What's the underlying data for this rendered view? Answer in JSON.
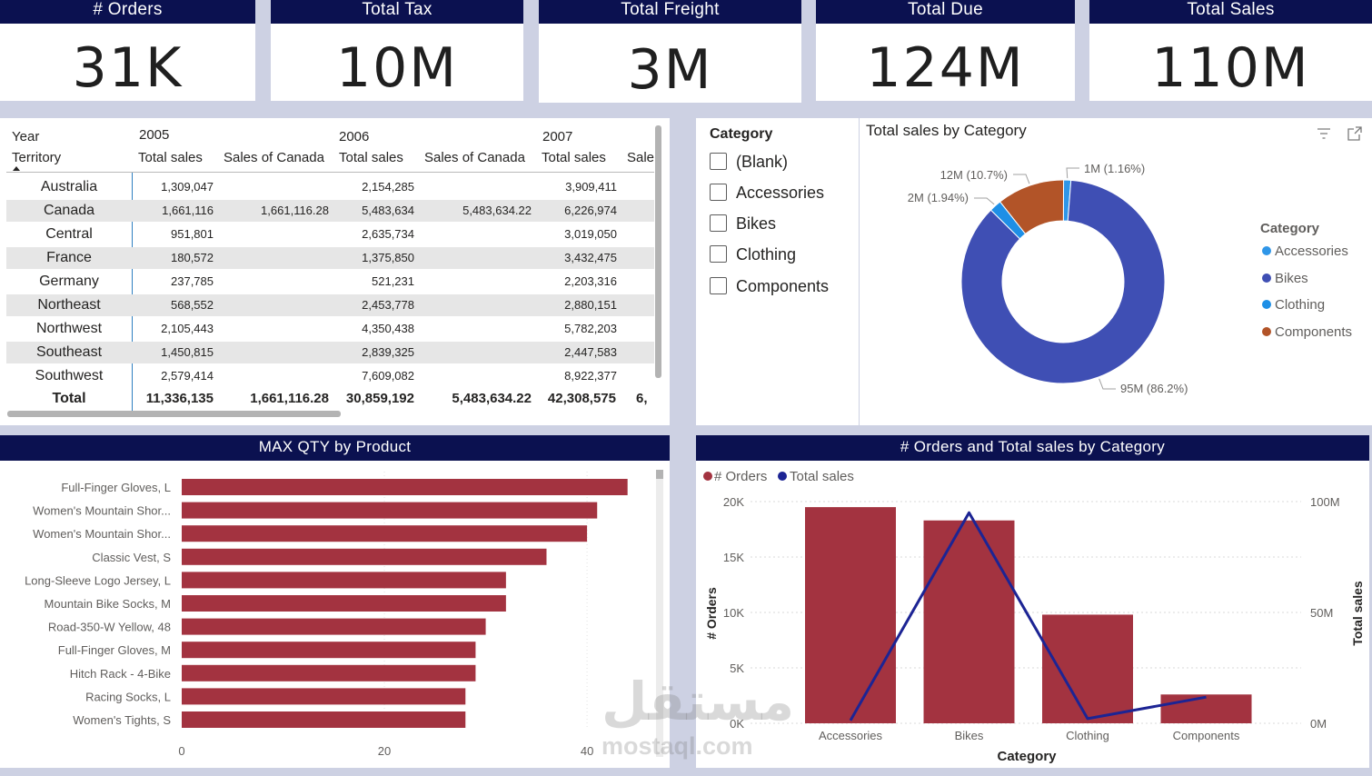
{
  "kpis": [
    {
      "label": "# Orders",
      "value": "31K"
    },
    {
      "label": "Total Tax",
      "value": "10M"
    },
    {
      "label": "Total Freight",
      "value": "3M"
    },
    {
      "label": "Total Due",
      "value": "124M"
    },
    {
      "label": "Total Sales",
      "value": "110M"
    }
  ],
  "matrix": {
    "row_header_1": "Year",
    "row_header_2": "Territory",
    "years": [
      "2005",
      "2006",
      "2007"
    ],
    "columns": [
      "Total sales",
      "Sales of Canada",
      "Total sales",
      "Sales of Canada",
      "Total sales",
      "Sales"
    ],
    "rows": [
      {
        "territory": "Australia",
        "cells": [
          "1,309,047",
          "",
          "2,154,285",
          "",
          "3,909,411"
        ]
      },
      {
        "territory": "Canada",
        "cells": [
          "1,661,116",
          "1,661,116.28",
          "5,483,634",
          "5,483,634.22",
          "6,226,974"
        ]
      },
      {
        "territory": "Central",
        "cells": [
          "951,801",
          "",
          "2,635,734",
          "",
          "3,019,050"
        ]
      },
      {
        "territory": "France",
        "cells": [
          "180,572",
          "",
          "1,375,850",
          "",
          "3,432,475"
        ]
      },
      {
        "territory": "Germany",
        "cells": [
          "237,785",
          "",
          "521,231",
          "",
          "2,203,316"
        ]
      },
      {
        "territory": "Northeast",
        "cells": [
          "568,552",
          "",
          "2,453,778",
          "",
          "2,880,151"
        ]
      },
      {
        "territory": "Northwest",
        "cells": [
          "2,105,443",
          "",
          "4,350,438",
          "",
          "5,782,203"
        ]
      },
      {
        "territory": "Southeast",
        "cells": [
          "1,450,815",
          "",
          "2,839,325",
          "",
          "2,447,583"
        ]
      },
      {
        "territory": "Southwest",
        "cells": [
          "2,579,414",
          "",
          "7,609,082",
          "",
          "8,922,377"
        ]
      }
    ],
    "total_label": "Total",
    "totals": [
      "11,336,135",
      "1,661,116.28",
      "30,859,192",
      "5,483,634.22",
      "42,308,575",
      "6,"
    ]
  },
  "slicer": {
    "title": "Category",
    "items": [
      "(Blank)",
      "Accessories",
      "Bikes",
      "Clothing",
      "Components"
    ]
  },
  "donut": {
    "title": "Total sales by Category",
    "legend_title": "Category",
    "chart_data": {
      "type": "pie",
      "categories": [
        "Accessories",
        "Bikes",
        "Clothing",
        "Components"
      ],
      "values": [
        1.16,
        86.2,
        1.94,
        10.7
      ],
      "labels": [
        "1M (1.16%)",
        "95M (86.2%)",
        "2M (1.94%)",
        "12M (10.7%)"
      ],
      "colors": [
        "#2f96e8",
        "#3f4fb4",
        "#1e8fe6",
        "#b25428"
      ]
    }
  },
  "bar_chart": {
    "title": "MAX QTY by Product",
    "chart_data": {
      "type": "bar",
      "orientation": "horizontal",
      "categories": [
        "Full-Finger Gloves, L",
        "Women's Mountain Shor...",
        "Women's Mountain Shor...",
        "Classic Vest, S",
        "Long-Sleeve Logo Jersey, L",
        "Mountain Bike Socks, M",
        "Road-350-W Yellow, 48",
        "Full-Finger Gloves, M",
        "Hitch Rack - 4-Bike",
        "Racing Socks, L",
        "Women's Tights, S"
      ],
      "values": [
        44,
        41,
        40,
        36,
        32,
        32,
        30,
        29,
        29,
        28,
        28
      ],
      "xlim": [
        0,
        46
      ],
      "xticks": [
        "0",
        "20",
        "40"
      ],
      "xtick_values": [
        0,
        20,
        40
      ],
      "color": "#a33340"
    }
  },
  "combo_chart": {
    "title": "# Orders and Total sales by Category",
    "legend": [
      "# Orders",
      "Total sales"
    ],
    "xlabel": "Category",
    "ylabel_left": "# Orders",
    "ylabel_right": "Total sales",
    "chart_data": {
      "type": "bar",
      "categories": [
        "Accessories",
        "Bikes",
        "Clothing",
        "Components"
      ],
      "series": [
        {
          "name": "# Orders",
          "type": "bar",
          "axis": "left",
          "values": [
            19500,
            18300,
            9800,
            2600
          ],
          "color": "#a33340"
        },
        {
          "name": "Total sales",
          "type": "line",
          "axis": "right",
          "values": [
            1.3,
            95,
            2.1,
            11.8
          ],
          "color": "#1c2494"
        }
      ],
      "ylim_left": [
        0,
        20000
      ],
      "yticks_left": [
        "0K",
        "5K",
        "10K",
        "15K",
        "20K"
      ],
      "ylim_right": [
        0,
        100
      ],
      "yticks_right": [
        "0M",
        "50M",
        "100M"
      ]
    }
  },
  "watermark": {
    "text_ar": "مستقل",
    "text_en": "mostaql.com"
  }
}
